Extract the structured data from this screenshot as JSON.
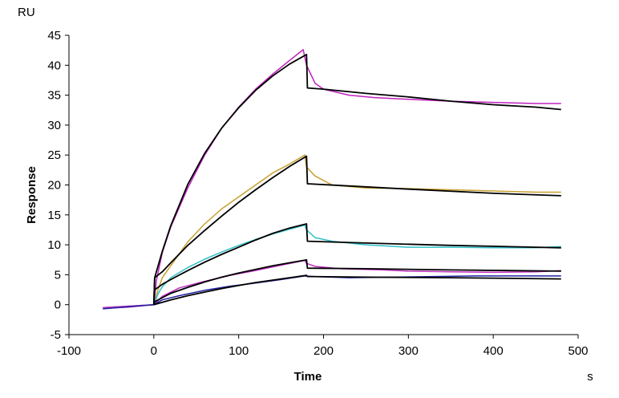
{
  "chart_data": {
    "type": "line",
    "xlabel": "Time",
    "ylabel": "Response",
    "x_unit": "s",
    "y_unit": "RU",
    "xlim": [
      -100,
      500
    ],
    "ylim": [
      -5,
      45
    ],
    "xticks": [
      -100,
      0,
      100,
      200,
      300,
      400,
      500
    ],
    "yticks": [
      -5,
      0,
      5,
      10,
      15,
      20,
      25,
      30,
      35,
      40,
      45
    ],
    "grid": false,
    "legend": "none",
    "series": [
      {
        "role": "measured",
        "color": "#c020c0",
        "points": [
          [
            -60,
            -0.6
          ],
          [
            -30,
            -0.4
          ],
          [
            0,
            0
          ],
          [
            3,
            4
          ],
          [
            10,
            8.7
          ],
          [
            20,
            13
          ],
          [
            40,
            19.5
          ],
          [
            60,
            25
          ],
          [
            80,
            29.5
          ],
          [
            100,
            33
          ],
          [
            120,
            36
          ],
          [
            140,
            38.5
          ],
          [
            160,
            40.8
          ],
          [
            176,
            42.6
          ],
          [
            180,
            40
          ],
          [
            190,
            37
          ],
          [
            200,
            36
          ],
          [
            230,
            35
          ],
          [
            260,
            34.6
          ],
          [
            300,
            34.3
          ],
          [
            350,
            34
          ],
          [
            400,
            33.8
          ],
          [
            450,
            33.6
          ],
          [
            480,
            33.6
          ]
        ]
      },
      {
        "role": "measured",
        "color": "#c8a030",
        "points": [
          [
            -60,
            -0.5
          ],
          [
            0,
            0
          ],
          [
            5,
            2.5
          ],
          [
            10,
            4.5
          ],
          [
            20,
            6.5
          ],
          [
            40,
            10.5
          ],
          [
            60,
            13.5
          ],
          [
            80,
            16
          ],
          [
            100,
            18
          ],
          [
            120,
            20
          ],
          [
            140,
            22
          ],
          [
            160,
            23.5
          ],
          [
            178,
            25
          ],
          [
            180,
            23
          ],
          [
            190,
            21.5
          ],
          [
            210,
            20
          ],
          [
            250,
            19.5
          ],
          [
            300,
            19.4
          ],
          [
            350,
            19.2
          ],
          [
            400,
            19
          ],
          [
            450,
            18.8
          ],
          [
            480,
            18.8
          ]
        ]
      },
      {
        "role": "measured",
        "color": "#30c0c8",
        "points": [
          [
            -60,
            -0.5
          ],
          [
            0,
            0
          ],
          [
            5,
            1.8
          ],
          [
            10,
            3
          ],
          [
            20,
            4.5
          ],
          [
            40,
            6.2
          ],
          [
            60,
            7.6
          ],
          [
            80,
            8.8
          ],
          [
            100,
            9.9
          ],
          [
            120,
            10.9
          ],
          [
            140,
            11.8
          ],
          [
            160,
            12.6
          ],
          [
            178,
            13.3
          ],
          [
            180,
            12.5
          ],
          [
            190,
            11.2
          ],
          [
            210,
            10.6
          ],
          [
            250,
            10
          ],
          [
            300,
            9.6
          ],
          [
            350,
            9.6
          ],
          [
            400,
            9.5
          ],
          [
            450,
            9.5
          ],
          [
            480,
            9.7
          ]
        ]
      },
      {
        "role": "measured",
        "color": "#c030c0",
        "points": [
          [
            -60,
            -0.5
          ],
          [
            0,
            0
          ],
          [
            10,
            1.4
          ],
          [
            30,
            2.8
          ],
          [
            60,
            3.9
          ],
          [
            90,
            4.9
          ],
          [
            120,
            5.7
          ],
          [
            150,
            6.6
          ],
          [
            178,
            7.4
          ],
          [
            180,
            6.9
          ],
          [
            190,
            6.4
          ],
          [
            220,
            6
          ],
          [
            270,
            5.8
          ],
          [
            300,
            5.6
          ],
          [
            350,
            5.5
          ],
          [
            400,
            5.4
          ],
          [
            450,
            5.5
          ],
          [
            480,
            5.7
          ]
        ]
      },
      {
        "role": "measured",
        "color": "#2020a0",
        "points": [
          [
            -60,
            -0.7
          ],
          [
            0,
            0
          ],
          [
            10,
            0.8
          ],
          [
            30,
            1.5
          ],
          [
            60,
            2.4
          ],
          [
            90,
            3.1
          ],
          [
            120,
            3.6
          ],
          [
            150,
            4.2
          ],
          [
            178,
            4.8
          ],
          [
            190,
            4.7
          ],
          [
            230,
            4.5
          ],
          [
            280,
            4.6
          ],
          [
            330,
            4.7
          ],
          [
            380,
            4.8
          ],
          [
            430,
            4.8
          ],
          [
            480,
            4.8
          ]
        ]
      },
      {
        "role": "fit",
        "color": "#000000",
        "points": [
          [
            0,
            0
          ],
          [
            1,
            4.5
          ],
          [
            10,
            8.9
          ],
          [
            20,
            13.2
          ],
          [
            40,
            20.1
          ],
          [
            60,
            25.3
          ],
          [
            80,
            29.5
          ],
          [
            100,
            32.9
          ],
          [
            120,
            35.8
          ],
          [
            140,
            38.2
          ],
          [
            160,
            40.2
          ],
          [
            180,
            41.8
          ],
          [
            181,
            36.2
          ],
          [
            200,
            36
          ],
          [
            250,
            35.3
          ],
          [
            300,
            34.7
          ],
          [
            350,
            34
          ],
          [
            400,
            33.4
          ],
          [
            450,
            33
          ],
          [
            480,
            32.6
          ]
        ]
      },
      {
        "role": "fit",
        "color": "#000000",
        "points": [
          [
            0,
            0
          ],
          [
            1,
            4.5
          ],
          [
            10,
            5.5
          ],
          [
            20,
            7
          ],
          [
            40,
            9.9
          ],
          [
            60,
            12.4
          ],
          [
            80,
            14.8
          ],
          [
            100,
            17.1
          ],
          [
            120,
            19.2
          ],
          [
            140,
            21.2
          ],
          [
            160,
            23.1
          ],
          [
            180,
            24.8
          ],
          [
            181,
            20.2
          ],
          [
            220,
            19.9
          ],
          [
            300,
            19.3
          ],
          [
            400,
            18.6
          ],
          [
            480,
            18.2
          ]
        ]
      },
      {
        "role": "fit",
        "color": "#000000",
        "points": [
          [
            0,
            0
          ],
          [
            1,
            2.5
          ],
          [
            10,
            3.4
          ],
          [
            20,
            4.2
          ],
          [
            40,
            5.7
          ],
          [
            60,
            7.1
          ],
          [
            80,
            8.4
          ],
          [
            100,
            9.6
          ],
          [
            120,
            10.8
          ],
          [
            140,
            11.9
          ],
          [
            160,
            12.8
          ],
          [
            180,
            13.5
          ],
          [
            181,
            10.6
          ],
          [
            250,
            10.3
          ],
          [
            350,
            9.9
          ],
          [
            480,
            9.5
          ]
        ]
      },
      {
        "role": "fit",
        "color": "#000000",
        "points": [
          [
            0,
            0
          ],
          [
            1,
            0.5
          ],
          [
            20,
            1.9
          ],
          [
            40,
            2.9
          ],
          [
            60,
            3.8
          ],
          [
            80,
            4.6
          ],
          [
            100,
            5.3
          ],
          [
            120,
            5.9
          ],
          [
            140,
            6.5
          ],
          [
            160,
            7
          ],
          [
            180,
            7.5
          ],
          [
            181,
            6.1
          ],
          [
            250,
            6
          ],
          [
            350,
            5.8
          ],
          [
            480,
            5.6
          ]
        ]
      },
      {
        "role": "fit",
        "color": "#000000",
        "points": [
          [
            0,
            0
          ],
          [
            20,
            0.8
          ],
          [
            40,
            1.5
          ],
          [
            60,
            2.1
          ],
          [
            80,
            2.7
          ],
          [
            100,
            3.2
          ],
          [
            120,
            3.7
          ],
          [
            140,
            4.1
          ],
          [
            160,
            4.5
          ],
          [
            180,
            4.9
          ],
          [
            181,
            4.7
          ],
          [
            250,
            4.6
          ],
          [
            350,
            4.5
          ],
          [
            480,
            4.3
          ]
        ]
      }
    ]
  }
}
